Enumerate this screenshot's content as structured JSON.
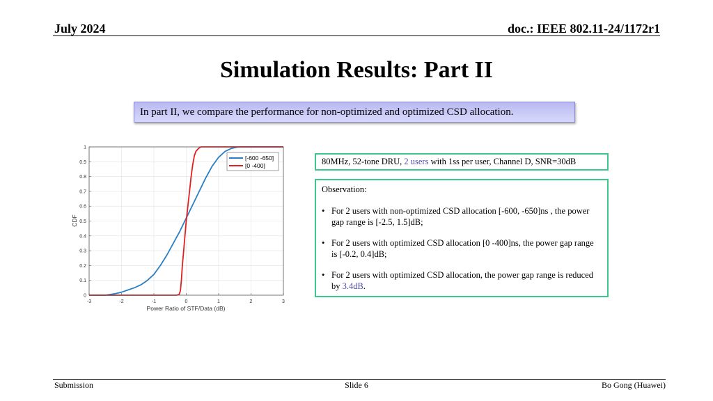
{
  "header": {
    "date": "July 2024",
    "doc": "doc.: IEEE 802.11-24/1172r1"
  },
  "title": "Simulation Results: Part II",
  "intro": "In part II, we compare the performance for non-optimized and optimized CSD allocation.",
  "config": {
    "prefix": "80MHz, 52-tone DRU, ",
    "highlight": "2 users",
    "suffix": " with 1ss per user, Channel D, SNR=30dB"
  },
  "observation": {
    "label": "Observation:",
    "bullet1": "For 2 users with non-optimized CSD allocation [-600, -650]ns , the power gap range is [-2.5, 1.5]dB;",
    "bullet2": "For 2 users with optimized CSD allocation [0 -400]ns, the power gap range is [-0.2, 0.4]dB;",
    "bullet3_prefix": "For 2 users with optimized CSD allocation, the power gap range is reduced by ",
    "bullet3_highlight": "3.4dB",
    "bullet3_suffix": "."
  },
  "footer": {
    "left": "Submission",
    "center": "Slide 6",
    "right": "Bo Gong (Huawei)"
  },
  "chart_data": {
    "type": "line",
    "xlabel": "Power Ratio of STF/Data (dB)",
    "ylabel": "CDF",
    "xlim": [
      -3,
      3
    ],
    "ylim": [
      0,
      1
    ],
    "xticks": [
      -3,
      -2,
      -1,
      0,
      1,
      2,
      3
    ],
    "yticks": [
      0,
      0.1,
      0.2,
      0.3,
      0.4,
      0.5,
      0.6,
      0.7,
      0.8,
      0.9,
      1
    ],
    "grid": true,
    "legend_position": "top-right",
    "series": [
      {
        "name": "[-600 -650]",
        "color": "#2a7fc4",
        "x": [
          -3,
          -2.5,
          -2.2,
          -2,
          -1.8,
          -1.6,
          -1.4,
          -1.2,
          -1,
          -0.8,
          -0.6,
          -0.4,
          -0.2,
          0,
          0.2,
          0.4,
          0.6,
          0.8,
          1,
          1.2,
          1.4,
          1.6,
          3
        ],
        "y": [
          0,
          0,
          0.01,
          0.02,
          0.035,
          0.05,
          0.07,
          0.1,
          0.14,
          0.2,
          0.27,
          0.35,
          0.43,
          0.52,
          0.61,
          0.7,
          0.79,
          0.87,
          0.93,
          0.97,
          0.99,
          1,
          1
        ]
      },
      {
        "name": "[0 -400]",
        "color": "#e02020",
        "x": [
          -3,
          -0.3,
          -0.22,
          -0.18,
          -0.15,
          -0.12,
          -0.08,
          -0.04,
          0,
          0.05,
          0.1,
          0.15,
          0.2,
          0.25,
          0.3,
          0.38,
          0.45,
          3
        ],
        "y": [
          0,
          0,
          0.005,
          0.03,
          0.1,
          0.2,
          0.3,
          0.4,
          0.5,
          0.6,
          0.7,
          0.8,
          0.88,
          0.94,
          0.97,
          0.99,
          1,
          1
        ]
      }
    ]
  }
}
